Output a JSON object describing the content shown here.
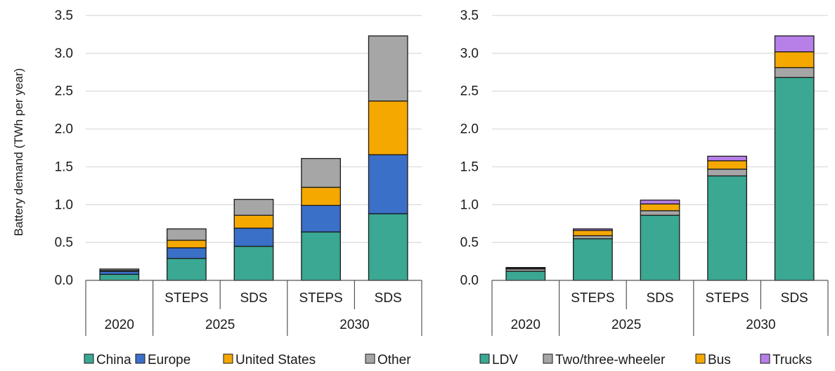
{
  "chart_data": [
    {
      "type": "bar",
      "stacked": true,
      "title": "",
      "ylabel": "Battery demand (TWh per year)",
      "ylim": [
        0,
        3.5
      ],
      "yticks": [
        "0.0",
        "0.5",
        "1.0",
        "1.5",
        "2.0",
        "2.5",
        "3.0",
        "3.5"
      ],
      "grid": true,
      "legend_position": "bottom",
      "categories": [
        {
          "year": "2020",
          "scenario": ""
        },
        {
          "year": "2025",
          "scenario": "STEPS"
        },
        {
          "year": "2025",
          "scenario": "SDS"
        },
        {
          "year": "2030",
          "scenario": "STEPS"
        },
        {
          "year": "2030",
          "scenario": "SDS"
        }
      ],
      "year_groups": [
        {
          "label": "2020",
          "span": [
            0,
            0
          ]
        },
        {
          "label": "2025",
          "span": [
            1,
            2
          ]
        },
        {
          "label": "2030",
          "span": [
            3,
            4
          ]
        }
      ],
      "series": [
        {
          "name": "China",
          "color": "#3aa893",
          "values": [
            0.08,
            0.29,
            0.45,
            0.64,
            0.88
          ]
        },
        {
          "name": "Europe",
          "color": "#3b70c8",
          "values": [
            0.04,
            0.14,
            0.24,
            0.35,
            0.78
          ]
        },
        {
          "name": "United States",
          "color": "#f5a800",
          "values": [
            0.01,
            0.1,
            0.17,
            0.24,
            0.71
          ]
        },
        {
          "name": "Other",
          "color": "#a6a6a6",
          "values": [
            0.02,
            0.15,
            0.21,
            0.38,
            0.86
          ]
        }
      ]
    },
    {
      "type": "bar",
      "stacked": true,
      "title": "",
      "ylabel": "",
      "ylim": [
        0,
        3.5
      ],
      "yticks": [
        "0.0",
        "0.5",
        "1.0",
        "1.5",
        "2.0",
        "2.5",
        "3.0",
        "3.5"
      ],
      "grid": true,
      "legend_position": "bottom",
      "categories": [
        {
          "year": "2020",
          "scenario": ""
        },
        {
          "year": "2025",
          "scenario": "STEPS"
        },
        {
          "year": "2025",
          "scenario": "SDS"
        },
        {
          "year": "2030",
          "scenario": "STEPS"
        },
        {
          "year": "2030",
          "scenario": "SDS"
        }
      ],
      "year_groups": [
        {
          "label": "2020",
          "span": [
            0,
            0
          ]
        },
        {
          "label": "2025",
          "span": [
            1,
            2
          ]
        },
        {
          "label": "2030",
          "span": [
            3,
            4
          ]
        }
      ],
      "series": [
        {
          "name": "LDV",
          "color": "#3aa893",
          "values": [
            0.12,
            0.55,
            0.86,
            1.38,
            2.68
          ]
        },
        {
          "name": "Two/three-wheeler",
          "color": "#a6a6a6",
          "values": [
            0.03,
            0.04,
            0.06,
            0.09,
            0.13
          ]
        },
        {
          "name": "Bus",
          "color": "#f5a800",
          "values": [
            0.01,
            0.07,
            0.09,
            0.11,
            0.21
          ]
        },
        {
          "name": "Trucks",
          "color": "#b77fe8",
          "values": [
            0.01,
            0.02,
            0.05,
            0.06,
            0.21
          ]
        }
      ]
    }
  ]
}
